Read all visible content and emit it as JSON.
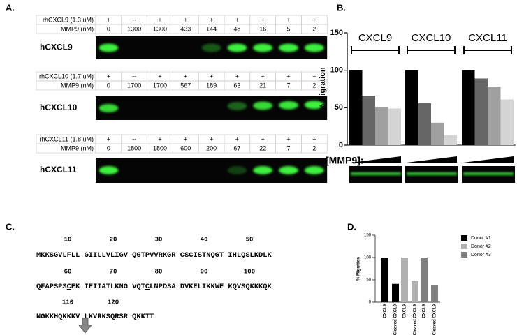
{
  "panel_labels": [
    "A.",
    "B.",
    "C.",
    "D."
  ],
  "panel_a": {
    "gels": [
      {
        "rows": [
          {
            "label": "rhCXCL9 (1.3 uM)",
            "cells": [
              "+",
              "--",
              "+",
              "+",
              "+",
              "+",
              "+",
              "+",
              "+"
            ]
          },
          {
            "label": "MMP9 (nM)",
            "cells": [
              0,
              1300,
              1300,
              433,
              144,
              48,
              16,
              5,
              2
            ]
          }
        ],
        "name": "hCXCL9"
      },
      {
        "rows": [
          {
            "label": "rhCXCL10 (1.7 uM)",
            "cells": [
              "+",
              "--",
              "+",
              "+",
              "+",
              "+",
              "+",
              "+",
              "+"
            ]
          },
          {
            "label": "MMP9 (nM)",
            "cells": [
              0,
              1700,
              1700,
              567,
              189,
              63,
              21,
              7,
              2
            ]
          }
        ],
        "name": "hCXCL10"
      },
      {
        "rows": [
          {
            "label": "rhCXCL11 (1.8 uM)",
            "cells": [
              "+",
              "--",
              "+",
              "+",
              "+",
              "+",
              "+",
              "+",
              "+"
            ]
          },
          {
            "label": "MMP9 (nM)",
            "cells": [
              0,
              1800,
              1800,
              600,
              200,
              67,
              22,
              7,
              2
            ]
          }
        ],
        "name": "hCXCL11"
      }
    ]
  },
  "chart_data": [
    {
      "type": "bar",
      "categories": [
        "CXCL9",
        "CXCL10",
        "CXCL11"
      ],
      "series": [
        {
          "color": "#000000",
          "values": [
            100,
            100,
            100
          ]
        },
        {
          "color": "#666666",
          "values": [
            66,
            56,
            89
          ]
        },
        {
          "color": "#a0a0a0",
          "values": [
            51,
            30,
            78
          ]
        },
        {
          "color": "#d4d4d4",
          "values": [
            49,
            13,
            61
          ]
        }
      ],
      "ylabel": "% Migration",
      "xlabel": "[MMP9]:",
      "ylim": [
        0,
        150
      ],
      "yticks": [
        0,
        50,
        100,
        150
      ]
    },
    {
      "type": "bar",
      "categories": [
        "CXCL9",
        "Cleaved CXCL9",
        "CXCL9",
        "Cleaved CXCL9",
        "CXCL9",
        "Cleaved CXCL9"
      ],
      "series": [
        {
          "name": "Donor #1",
          "color": "#000000",
          "values": [
            100,
            41,
            null,
            null,
            null,
            null
          ]
        },
        {
          "name": "Donor #2",
          "color": "#b0b0b0",
          "values": [
            null,
            null,
            100,
            48,
            null,
            null
          ]
        },
        {
          "name": "Donor #3",
          "color": "#808080",
          "values": [
            null,
            null,
            null,
            null,
            100,
            39
          ]
        }
      ],
      "ylabel": "% Migration",
      "ylim": [
        0,
        150
      ],
      "yticks": [
        0,
        50,
        100,
        150
      ],
      "legend": "upper right"
    }
  ],
  "panel_c": {
    "positions": [
      [
        10,
        20,
        30,
        40,
        50
      ],
      [
        60,
        70,
        80,
        90,
        100
      ],
      [
        110,
        120
      ]
    ],
    "lines": [
      [
        "MKKSGVLFLL GIILLVLIGV QGTPVVRKGR ",
        "CSC",
        "ISTNQGT IHLQSLKDLK"
      ],
      [
        "QFAPSPS",
        "C",
        "EK IEIIATLKNG VQT",
        "C",
        "LNPDSA DVKELIKKWE KQVSQKKKQK"
      ],
      [
        "NGKKHQKKKV LKVRKSQRSR QKKTT"
      ]
    ]
  }
}
